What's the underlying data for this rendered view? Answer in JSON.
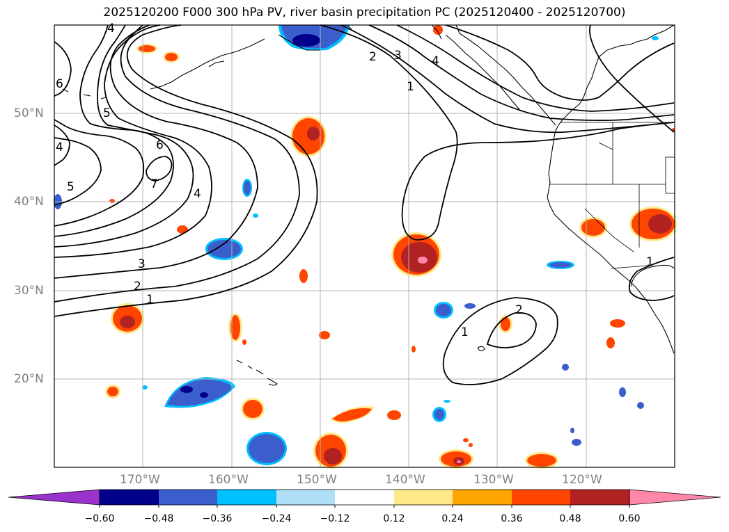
{
  "title": "2025120200 F000 300 hPa PV, river basin precipitation PC (2025120400 - 2025120700)",
  "lat_labels": [
    "50°N",
    "40°N",
    "30°N",
    "20°N"
  ],
  "lon_labels": [
    "170°W",
    "160°W",
    "150°W",
    "140°W",
    "130°W",
    "120°W"
  ],
  "contour_labels": [
    "4",
    "2",
    "3",
    "4",
    "1",
    "6",
    "5",
    "6",
    "4",
    "5",
    "7",
    "4",
    "3",
    "2",
    "1",
    "1",
    "1",
    "2"
  ],
  "colorbar": {
    "ticks": [
      "−0.60",
      "−0.48",
      "−0.36",
      "−0.24",
      "−0.12",
      "0.12",
      "0.24",
      "0.36",
      "0.48",
      "0.60"
    ],
    "colors": [
      "#9933cc",
      "#00008b",
      "#3a5fcd",
      "#00bfff",
      "#b0e0f8",
      "#ffffff",
      "#ffe88a",
      "#ffa500",
      "#ff4500",
      "#b22222",
      "#ff88aa"
    ]
  }
}
